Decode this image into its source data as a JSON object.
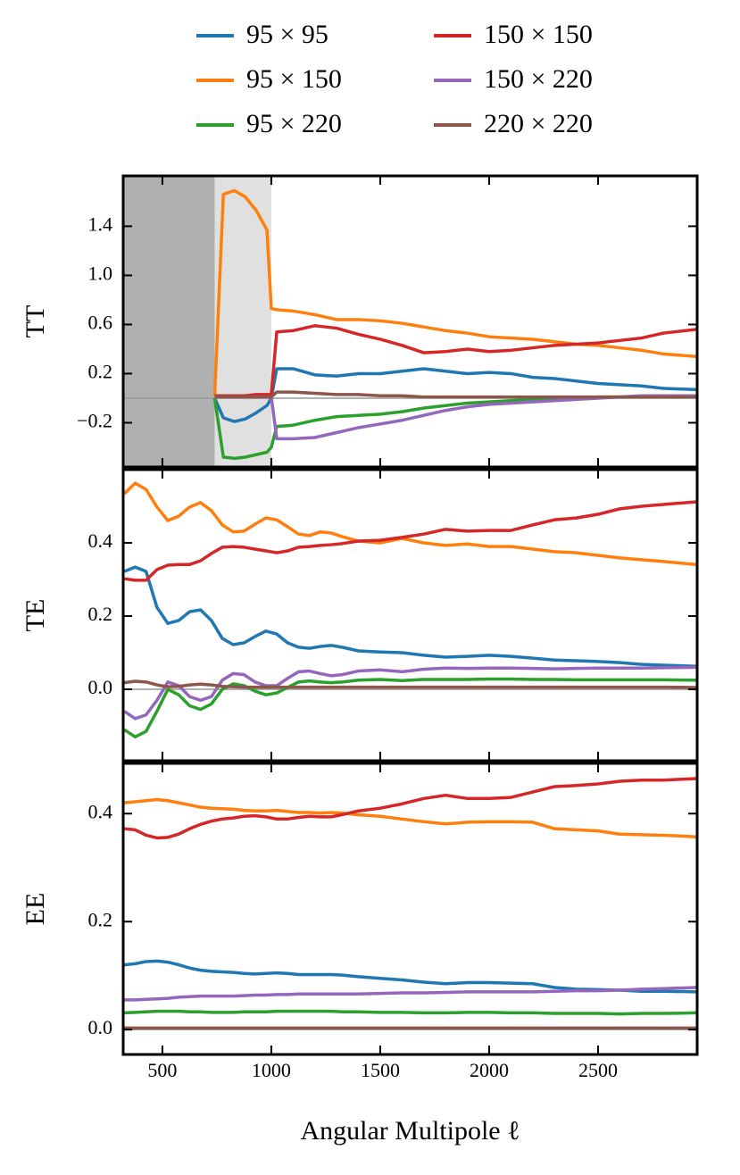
{
  "chart_data": [
    {
      "type": "line",
      "ylabel": "TT",
      "x": [
        740,
        780,
        830,
        880,
        930,
        980,
        1000,
        1025,
        1100,
        1200,
        1300,
        1400,
        1500,
        1600,
        1700,
        1800,
        1900,
        2000,
        2100,
        2200,
        2300,
        2400,
        2500,
        2600,
        2700,
        2800,
        2950
      ],
      "series": [
        {
          "name": "95 × 95",
          "color": "#1f77b4",
          "values": [
            0,
            -0.16,
            -0.19,
            -0.17,
            -0.12,
            -0.06,
            0.0,
            0.24,
            0.24,
            0.19,
            0.18,
            0.2,
            0.2,
            0.22,
            0.24,
            0.22,
            0.2,
            0.21,
            0.2,
            0.17,
            0.16,
            0.14,
            0.12,
            0.11,
            0.1,
            0.08,
            0.07
          ]
        },
        {
          "name": "95 × 150",
          "color": "#ff7f0e",
          "values": [
            0.02,
            1.66,
            1.69,
            1.64,
            1.53,
            1.37,
            0.73,
            0.72,
            0.71,
            0.68,
            0.64,
            0.64,
            0.63,
            0.61,
            0.58,
            0.55,
            0.53,
            0.5,
            0.49,
            0.48,
            0.46,
            0.44,
            0.43,
            0.41,
            0.39,
            0.36,
            0.34
          ]
        },
        {
          "name": "95 × 220",
          "color": "#2ca02c",
          "values": [
            0,
            -0.48,
            -0.49,
            -0.48,
            -0.46,
            -0.44,
            -0.4,
            -0.23,
            -0.22,
            -0.18,
            -0.15,
            -0.14,
            -0.13,
            -0.11,
            -0.08,
            -0.06,
            -0.04,
            -0.03,
            -0.02,
            -0.01,
            0,
            0,
            0.01,
            0.01,
            0.01,
            0.01,
            0.01
          ]
        },
        {
          "name": "150 × 150",
          "color": "#d62728",
          "values": [
            0.02,
            0.02,
            0.02,
            0.02,
            0.03,
            0.03,
            0.03,
            0.54,
            0.55,
            0.59,
            0.57,
            0.52,
            0.48,
            0.43,
            0.37,
            0.38,
            0.4,
            0.38,
            0.39,
            0.41,
            0.43,
            0.44,
            0.45,
            0.47,
            0.49,
            0.53,
            0.56
          ]
        },
        {
          "name": "150 × 220",
          "color": "#9467bd",
          "values": [
            0.01,
            0.01,
            0.01,
            0.01,
            0.01,
            0.01,
            0.01,
            -0.33,
            -0.33,
            -0.32,
            -0.28,
            -0.24,
            -0.21,
            -0.18,
            -0.14,
            -0.1,
            -0.07,
            -0.05,
            -0.04,
            -0.03,
            -0.02,
            -0.01,
            0,
            0.01,
            0.02,
            0.02,
            0.02
          ]
        },
        {
          "name": "220 × 220",
          "color": "#8c564b",
          "values": [
            0.01,
            0.01,
            0.01,
            0.01,
            0.01,
            0.01,
            0.01,
            0.05,
            0.05,
            0.04,
            0.03,
            0.03,
            0.02,
            0.02,
            0.01,
            0.01,
            0.01,
            0.01,
            0.01,
            0.01,
            0.01,
            0.01,
            0.01,
            0.01,
            0.01,
            0.01,
            0.01
          ]
        }
      ],
      "xlim": [
        320,
        2955
      ],
      "xticks": [
        500,
        1000,
        1500,
        2000,
        2500
      ],
      "ylim": [
        -0.56,
        1.81
      ],
      "yticks": [
        {
          "value": -0.2,
          "label": "−0.2"
        },
        0.2,
        0.6,
        {
          "value": 1,
          "label": "1.0"
        },
        1.4
      ],
      "zero_line": true,
      "shaded_regions": [
        {
          "xlim": [
            320,
            740
          ],
          "color": "#b0b0b0"
        },
        {
          "xlim": [
            740,
            1000
          ],
          "color": "#e0e0e0"
        }
      ]
    },
    {
      "type": "line",
      "ylabel": "TE",
      "x": [
        325,
        375,
        425,
        475,
        525,
        575,
        625,
        675,
        725,
        775,
        825,
        875,
        925,
        975,
        1025,
        1075,
        1125,
        1175,
        1225,
        1275,
        1325,
        1400,
        1500,
        1600,
        1700,
        1800,
        1900,
        2000,
        2100,
        2200,
        2300,
        2400,
        2500,
        2600,
        2700,
        2800,
        2950
      ],
      "series": [
        {
          "color": "#1f77b4",
          "values": [
            0.322,
            0.334,
            0.322,
            0.224,
            0.18,
            0.188,
            0.212,
            0.217,
            0.188,
            0.139,
            0.122,
            0.127,
            0.144,
            0.159,
            0.151,
            0.127,
            0.115,
            0.112,
            0.117,
            0.12,
            0.115,
            0.105,
            0.102,
            0.1,
            0.093,
            0.088,
            0.09,
            0.093,
            0.09,
            0.085,
            0.08,
            0.078,
            0.076,
            0.073,
            0.068,
            0.066,
            0.063
          ]
        },
        {
          "color": "#ff7f0e",
          "values": [
            0.534,
            0.563,
            0.546,
            0.498,
            0.461,
            0.473,
            0.498,
            0.51,
            0.488,
            0.449,
            0.43,
            0.432,
            0.451,
            0.468,
            0.463,
            0.444,
            0.424,
            0.42,
            0.43,
            0.427,
            0.417,
            0.405,
            0.4,
            0.412,
            0.4,
            0.393,
            0.397,
            0.39,
            0.39,
            0.383,
            0.376,
            0.373,
            0.366,
            0.359,
            0.354,
            0.349,
            0.341
          ]
        },
        {
          "color": "#2ca02c",
          "values": [
            -0.11,
            -0.13,
            -0.115,
            -0.06,
            0.0,
            -0.015,
            -0.045,
            -0.055,
            -0.04,
            0.0,
            0.015,
            0.01,
            -0.005,
            -0.015,
            -0.01,
            0.005,
            0.02,
            0.023,
            0.02,
            0.018,
            0.02,
            0.025,
            0.027,
            0.024,
            0.027,
            0.027,
            0.027,
            0.028,
            0.028,
            0.027,
            0.027,
            0.026,
            0.026,
            0.026,
            0.026,
            0.026,
            0.025
          ]
        },
        {
          "color": "#d62728",
          "values": [
            0.302,
            0.298,
            0.298,
            0.327,
            0.339,
            0.341,
            0.341,
            0.351,
            0.371,
            0.388,
            0.39,
            0.388,
            0.383,
            0.378,
            0.373,
            0.378,
            0.388,
            0.39,
            0.393,
            0.395,
            0.398,
            0.405,
            0.407,
            0.415,
            0.424,
            0.437,
            0.432,
            0.434,
            0.434,
            0.449,
            0.463,
            0.468,
            0.478,
            0.493,
            0.5,
            0.505,
            0.512
          ]
        },
        {
          "color": "#9467bd",
          "values": [
            -0.06,
            -0.08,
            -0.07,
            -0.03,
            0.02,
            0.01,
            -0.02,
            -0.03,
            -0.02,
            0.025,
            0.043,
            0.04,
            0.02,
            0.01,
            0.01,
            0.03,
            0.048,
            0.05,
            0.043,
            0.037,
            0.04,
            0.05,
            0.053,
            0.048,
            0.055,
            0.058,
            0.057,
            0.058,
            0.058,
            0.057,
            0.056,
            0.057,
            0.058,
            0.058,
            0.058,
            0.059,
            0.06
          ]
        },
        {
          "color": "#8c564b",
          "values": [
            0.018,
            0.022,
            0.02,
            0.012,
            0.007,
            0.008,
            0.012,
            0.014,
            0.012,
            0.008,
            0.007,
            0.006,
            0.006,
            0.006,
            0.006,
            0.006,
            0.006,
            0.006,
            0.006,
            0.006,
            0.006,
            0.006,
            0.006,
            0.006,
            0.006,
            0.006,
            0.006,
            0.006,
            0.006,
            0.006,
            0.006,
            0.006,
            0.006,
            0.006,
            0.006,
            0.006,
            0.005
          ]
        }
      ],
      "xlim": [
        320,
        2955
      ],
      "xticks": [
        500,
        1000,
        1500,
        2000,
        2500
      ],
      "ylim": [
        -0.195,
        0.6
      ],
      "yticks": [
        {
          "value": 0,
          "label": "0.0"
        },
        0.2,
        0.4
      ],
      "zero_line": true
    },
    {
      "type": "line",
      "ylabel": "EE",
      "xlabel": "Angular Multipole ℓ",
      "x": [
        325,
        375,
        425,
        475,
        525,
        575,
        625,
        675,
        725,
        775,
        825,
        875,
        925,
        975,
        1025,
        1075,
        1125,
        1175,
        1225,
        1275,
        1325,
        1400,
        1500,
        1600,
        1700,
        1800,
        1900,
        2000,
        2100,
        2200,
        2300,
        2400,
        2500,
        2600,
        2700,
        2800,
        2950
      ],
      "series": [
        {
          "color": "#1f77b4",
          "values": [
            0.12,
            0.122,
            0.126,
            0.127,
            0.125,
            0.12,
            0.114,
            0.11,
            0.108,
            0.107,
            0.106,
            0.104,
            0.103,
            0.104,
            0.105,
            0.104,
            0.102,
            0.102,
            0.102,
            0.102,
            0.101,
            0.098,
            0.095,
            0.092,
            0.088,
            0.085,
            0.087,
            0.087,
            0.086,
            0.085,
            0.078,
            0.075,
            0.074,
            0.073,
            0.071,
            0.071,
            0.07
          ]
        },
        {
          "color": "#ff7f0e",
          "values": [
            0.42,
            0.422,
            0.424,
            0.426,
            0.424,
            0.42,
            0.416,
            0.412,
            0.41,
            0.409,
            0.408,
            0.406,
            0.405,
            0.405,
            0.406,
            0.404,
            0.402,
            0.402,
            0.401,
            0.402,
            0.401,
            0.398,
            0.395,
            0.39,
            0.385,
            0.381,
            0.384,
            0.385,
            0.385,
            0.384,
            0.372,
            0.37,
            0.368,
            0.362,
            0.361,
            0.36,
            0.357
          ]
        },
        {
          "color": "#2ca02c",
          "values": [
            0.031,
            0.032,
            0.033,
            0.034,
            0.034,
            0.034,
            0.033,
            0.033,
            0.032,
            0.032,
            0.032,
            0.033,
            0.033,
            0.033,
            0.034,
            0.034,
            0.034,
            0.034,
            0.034,
            0.034,
            0.033,
            0.033,
            0.032,
            0.032,
            0.031,
            0.031,
            0.032,
            0.032,
            0.031,
            0.031,
            0.03,
            0.03,
            0.03,
            0.029,
            0.03,
            0.03,
            0.031
          ]
        },
        {
          "color": "#d62728",
          "values": [
            0.372,
            0.37,
            0.36,
            0.355,
            0.356,
            0.362,
            0.372,
            0.38,
            0.386,
            0.39,
            0.392,
            0.395,
            0.396,
            0.394,
            0.39,
            0.39,
            0.393,
            0.395,
            0.394,
            0.394,
            0.398,
            0.405,
            0.41,
            0.418,
            0.428,
            0.434,
            0.428,
            0.428,
            0.43,
            0.44,
            0.45,
            0.452,
            0.455,
            0.46,
            0.462,
            0.462,
            0.465
          ]
        },
        {
          "color": "#9467bd",
          "values": [
            0.055,
            0.055,
            0.056,
            0.057,
            0.058,
            0.06,
            0.061,
            0.062,
            0.062,
            0.062,
            0.062,
            0.063,
            0.064,
            0.064,
            0.065,
            0.065,
            0.066,
            0.066,
            0.066,
            0.066,
            0.066,
            0.066,
            0.067,
            0.068,
            0.068,
            0.069,
            0.07,
            0.07,
            0.07,
            0.07,
            0.071,
            0.072,
            0.072,
            0.073,
            0.075,
            0.076,
            0.078
          ]
        },
        {
          "color": "#8c564b",
          "values": [
            0.003,
            0.003,
            0.003,
            0.003,
            0.003,
            0.003,
            0.003,
            0.003,
            0.003,
            0.003,
            0.003,
            0.003,
            0.003,
            0.003,
            0.003,
            0.003,
            0.003,
            0.003,
            0.003,
            0.003,
            0.003,
            0.003,
            0.003,
            0.003,
            0.003,
            0.003,
            0.003,
            0.003,
            0.003,
            0.003,
            0.003,
            0.003,
            0.003,
            0.003,
            0.003,
            0.003,
            0.003
          ]
        }
      ],
      "xlim": [
        320,
        2955
      ],
      "xticks": [
        500,
        1000,
        1500,
        2000,
        2500
      ],
      "ylim": [
        -0.046,
        0.493
      ],
      "yticks": [
        {
          "value": 0,
          "label": "0.0"
        },
        0.2,
        0.4
      ],
      "zero_line": true
    }
  ]
}
